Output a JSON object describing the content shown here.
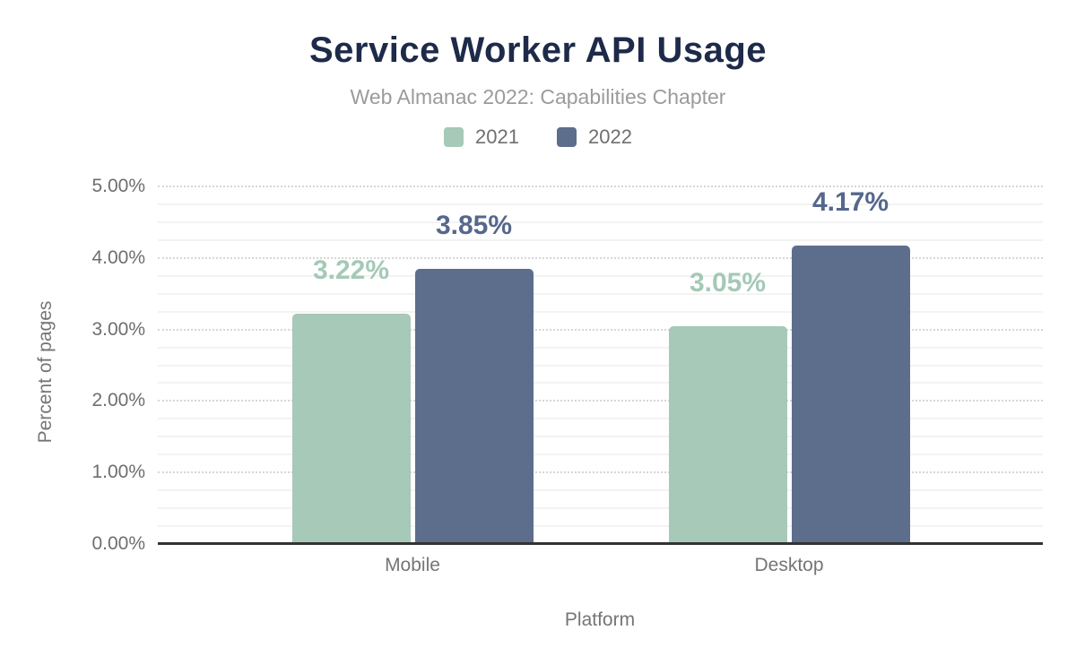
{
  "chart_data": {
    "type": "bar",
    "title": "Service Worker API Usage",
    "subtitle": "Web Almanac 2022: Capabilities Chapter",
    "categories": [
      "Mobile",
      "Desktop"
    ],
    "series": [
      {
        "name": "2021",
        "color": "#a6c9b8",
        "label_color": "#a4c9b7",
        "values": [
          3.22,
          3.05
        ],
        "value_labels": [
          "3.22%",
          "3.05%"
        ]
      },
      {
        "name": "2022",
        "color": "#5d6e8c",
        "label_color": "#55678c",
        "values": [
          3.85,
          4.17
        ],
        "value_labels": [
          "3.85%",
          "4.17%"
        ]
      }
    ],
    "xlabel": "Platform",
    "ylabel": "Percent of pages",
    "ylim": [
      0,
      5
    ],
    "yticks": [
      {
        "value": 0,
        "label": "0.00%"
      },
      {
        "value": 1,
        "label": "1.00%"
      },
      {
        "value": 2,
        "label": "2.00%"
      },
      {
        "value": 3,
        "label": "3.00%"
      },
      {
        "value": 4,
        "label": "4.00%"
      },
      {
        "value": 5,
        "label": "5.00%"
      }
    ],
    "grid": {
      "major_step": 1,
      "minor_step": 0.25,
      "major_style": "dotted",
      "minor_style": "solid"
    },
    "legend_position": "top",
    "colors": {
      "title": "#1e2a49",
      "subtitle": "#9b9b9b",
      "axis_text": "#6e6e6e",
      "baseline": "#333333"
    }
  }
}
